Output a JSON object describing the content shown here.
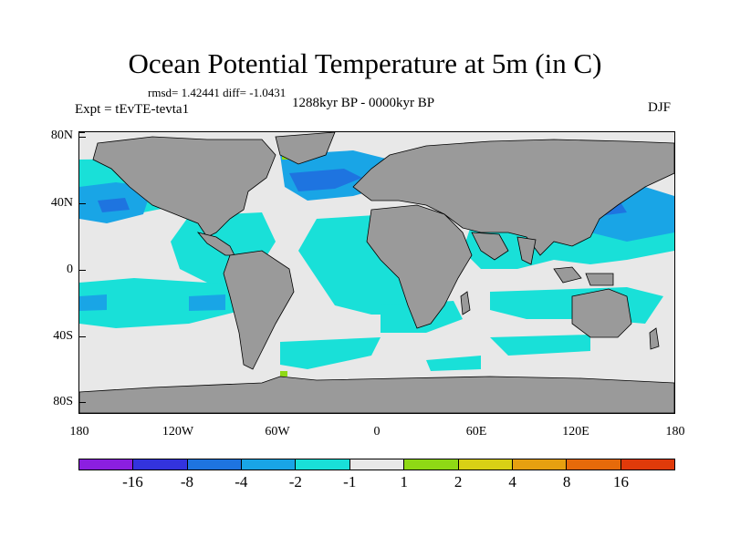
{
  "title": "Ocean Potential Temperature at 5m (in C)",
  "stats": "rmsd= 1.42441 diff= -1.0431",
  "experiment": "Expt = tEvTE-tevta1",
  "period": "1288kyr BP - 0000kyr BP",
  "season": "DJF",
  "axes": {
    "lat_labels": [
      "80N",
      "40N",
      "0",
      "40S",
      "80S"
    ],
    "lon_labels": [
      "180",
      "120W",
      "60W",
      "0",
      "60E",
      "120E",
      "180"
    ]
  },
  "colorbar": {
    "colors": [
      "#8b1fe0",
      "#3333dd",
      "#1e74e0",
      "#19a5e6",
      "#19e0d8",
      "#e8e8e8",
      "#8fd915",
      "#d9d015",
      "#e6a010",
      "#e66a0a",
      "#e03a0a"
    ],
    "labels": [
      "-16",
      "-8",
      "-4",
      "-2",
      "-1",
      "1",
      "2",
      "4",
      "8",
      "16"
    ]
  },
  "colors": {
    "land": "#9a9a9a",
    "neutral": "#e8e8e8",
    "cool1": "#19e0d8",
    "cool2": "#19a5e6",
    "cool3": "#1e74e0",
    "warm1": "#8fd915"
  }
}
